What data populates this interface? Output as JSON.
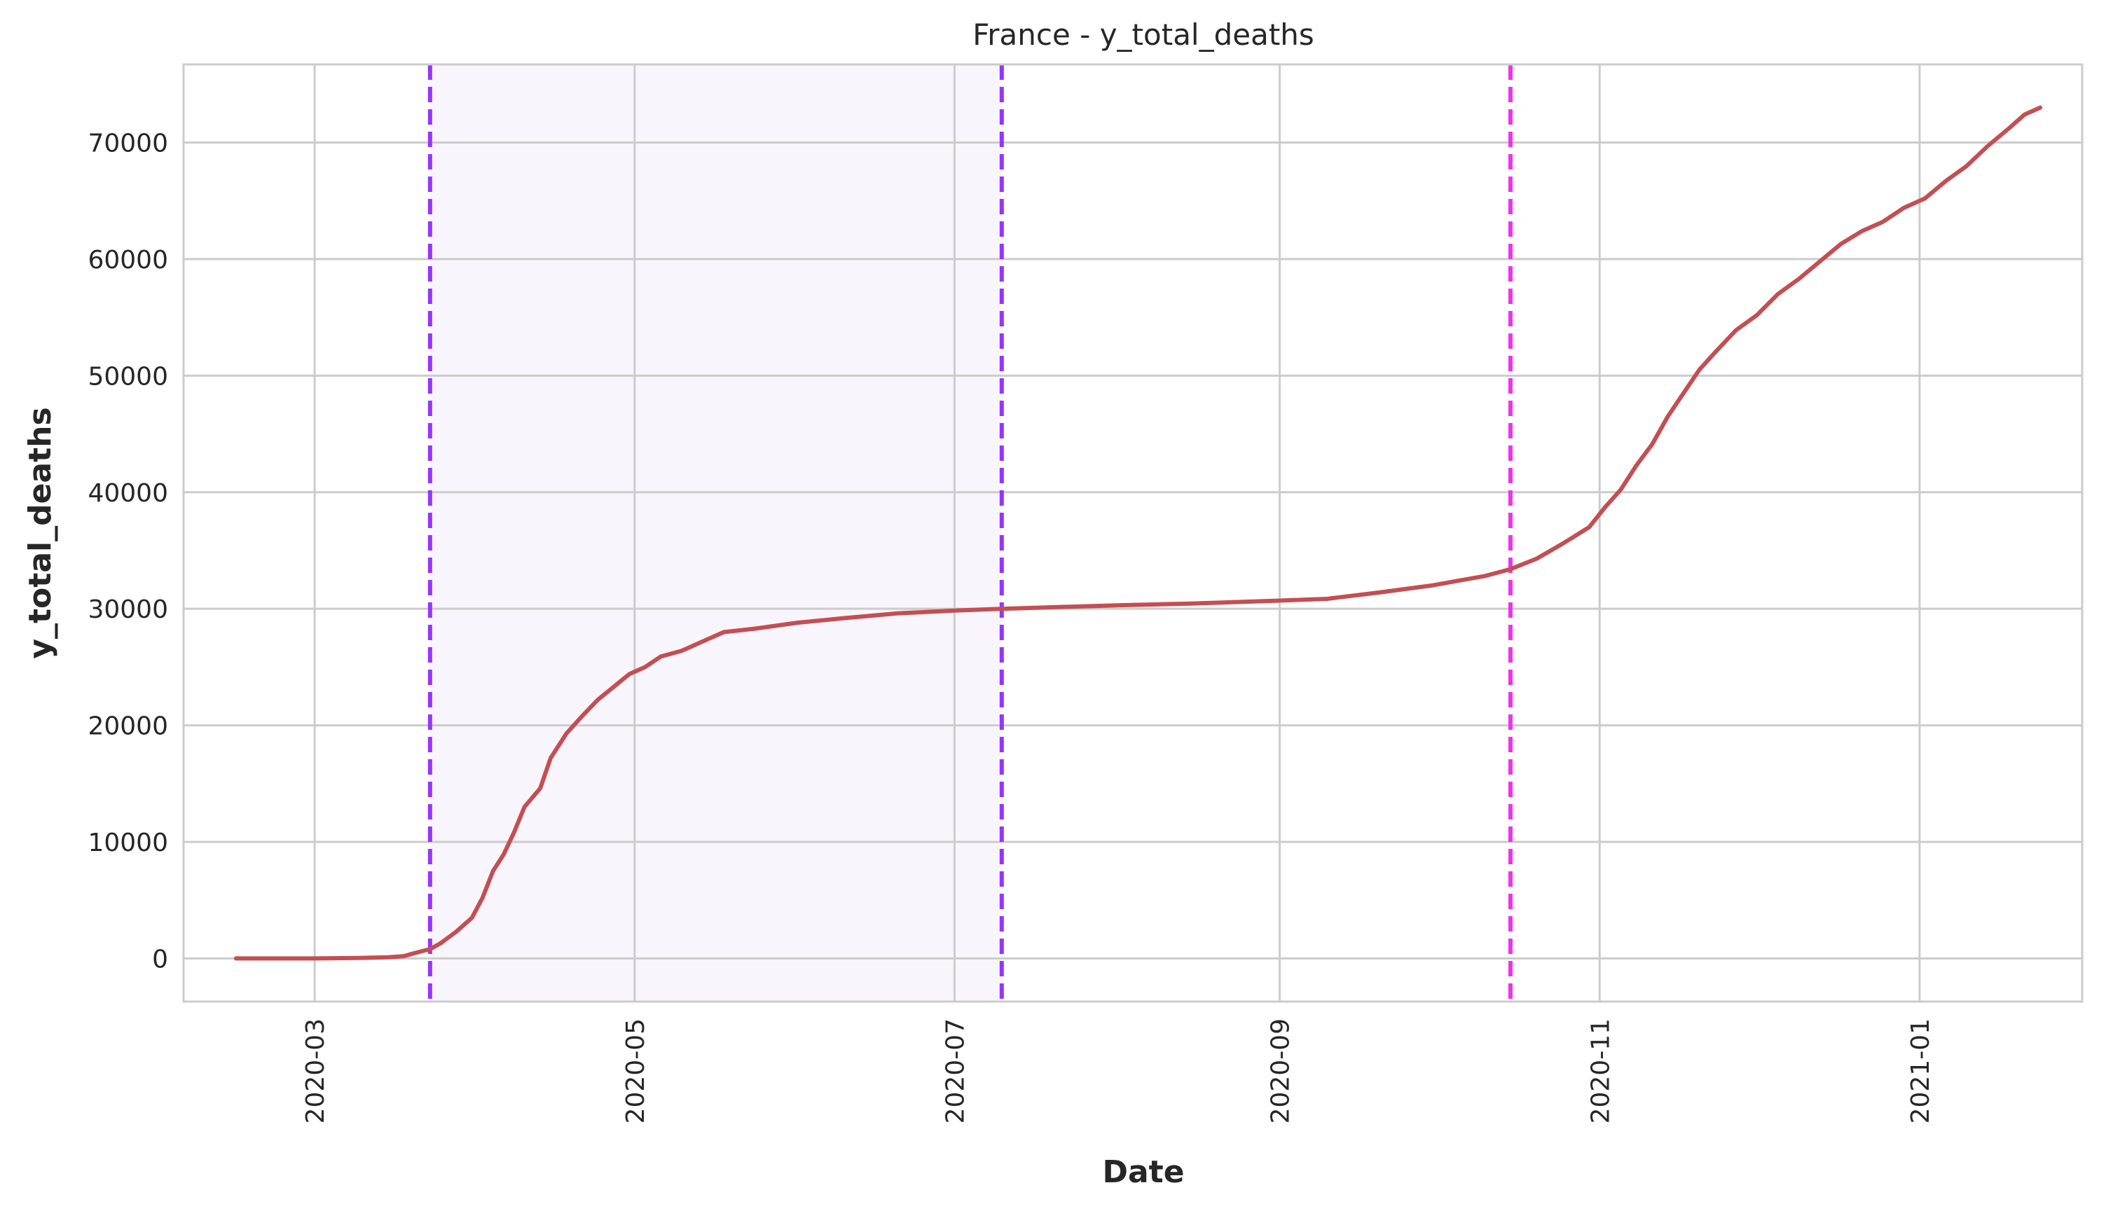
{
  "chart_data": {
    "type": "line",
    "title": "France - y_total_deaths",
    "xlabel": "Date",
    "ylabel": "y_total_deaths",
    "x_range": [
      "2020-02-05",
      "2021-02-01"
    ],
    "ylim": [
      -3700,
      76700
    ],
    "grid": true,
    "x_ticks": [
      {
        "date": "2020-03-01",
        "label": "2020-03"
      },
      {
        "date": "2020-05-01",
        "label": "2020-05"
      },
      {
        "date": "2020-07-01",
        "label": "2020-07"
      },
      {
        "date": "2020-09-01",
        "label": "2020-09"
      },
      {
        "date": "2020-11-01",
        "label": "2020-11"
      },
      {
        "date": "2021-01-01",
        "label": "2021-01"
      }
    ],
    "y_ticks": [
      0,
      10000,
      20000,
      30000,
      40000,
      50000,
      60000,
      70000
    ],
    "shaded_region": {
      "start": "2020-03-23",
      "end": "2020-07-10",
      "color": "#f8f5fd"
    },
    "vlines": [
      {
        "date": "2020-03-23",
        "color": "#9933ff",
        "style": "dashed"
      },
      {
        "date": "2020-07-10",
        "color": "#9933ff",
        "style": "dashed"
      },
      {
        "date": "2020-10-15",
        "color": "#ee33ee",
        "style": "dashed"
      }
    ],
    "series": [
      {
        "name": "y_total_deaths",
        "color": "#c44e52",
        "points": [
          [
            "2020-02-15",
            0
          ],
          [
            "2020-03-01",
            2
          ],
          [
            "2020-03-10",
            50
          ],
          [
            "2020-03-15",
            100
          ],
          [
            "2020-03-18",
            200
          ],
          [
            "2020-03-20",
            450
          ],
          [
            "2020-03-23",
            800
          ],
          [
            "2020-03-25",
            1300
          ],
          [
            "2020-03-28",
            2300
          ],
          [
            "2020-03-31",
            3500
          ],
          [
            "2020-04-02",
            5200
          ],
          [
            "2020-04-04",
            7500
          ],
          [
            "2020-04-06",
            8900
          ],
          [
            "2020-04-08",
            10800
          ],
          [
            "2020-04-10",
            13000
          ],
          [
            "2020-04-13",
            14600
          ],
          [
            "2020-04-15",
            17200
          ],
          [
            "2020-04-18",
            19300
          ],
          [
            "2020-04-21",
            20800
          ],
          [
            "2020-04-24",
            22200
          ],
          [
            "2020-04-27",
            23300
          ],
          [
            "2020-04-30",
            24400
          ],
          [
            "2020-05-03",
            25000
          ],
          [
            "2020-05-06",
            25900
          ],
          [
            "2020-05-10",
            26400
          ],
          [
            "2020-05-14",
            27200
          ],
          [
            "2020-05-18",
            28000
          ],
          [
            "2020-05-24",
            28300
          ],
          [
            "2020-06-01",
            28800
          ],
          [
            "2020-06-10",
            29200
          ],
          [
            "2020-06-20",
            29600
          ],
          [
            "2020-07-01",
            29850
          ],
          [
            "2020-07-10",
            30000
          ],
          [
            "2020-08-01",
            30300
          ],
          [
            "2020-08-15",
            30450
          ],
          [
            "2020-09-01",
            30700
          ],
          [
            "2020-09-10",
            30850
          ],
          [
            "2020-09-20",
            31400
          ],
          [
            "2020-09-30",
            32000
          ],
          [
            "2020-10-05",
            32400
          ],
          [
            "2020-10-10",
            32800
          ],
          [
            "2020-10-15",
            33400
          ],
          [
            "2020-10-20",
            34300
          ],
          [
            "2020-10-25",
            35600
          ],
          [
            "2020-10-30",
            37000
          ],
          [
            "2020-11-02",
            38700
          ],
          [
            "2020-11-05",
            40200
          ],
          [
            "2020-11-08",
            42300
          ],
          [
            "2020-11-11",
            44100
          ],
          [
            "2020-11-14",
            46500
          ],
          [
            "2020-11-17",
            48500
          ],
          [
            "2020-11-20",
            50500
          ],
          [
            "2020-11-23",
            52000
          ],
          [
            "2020-11-27",
            53900
          ],
          [
            "2020-12-01",
            55200
          ],
          [
            "2020-12-05",
            57000
          ],
          [
            "2020-12-09",
            58300
          ],
          [
            "2020-12-13",
            59800
          ],
          [
            "2020-12-17",
            61300
          ],
          [
            "2020-12-21",
            62400
          ],
          [
            "2020-12-25",
            63200
          ],
          [
            "2020-12-29",
            64400
          ],
          [
            "2021-01-02",
            65200
          ],
          [
            "2021-01-06",
            66700
          ],
          [
            "2021-01-10",
            68000
          ],
          [
            "2021-01-14",
            69700
          ],
          [
            "2021-01-18",
            71200
          ],
          [
            "2021-01-21",
            72400
          ],
          [
            "2021-01-24",
            73000
          ]
        ]
      }
    ]
  }
}
